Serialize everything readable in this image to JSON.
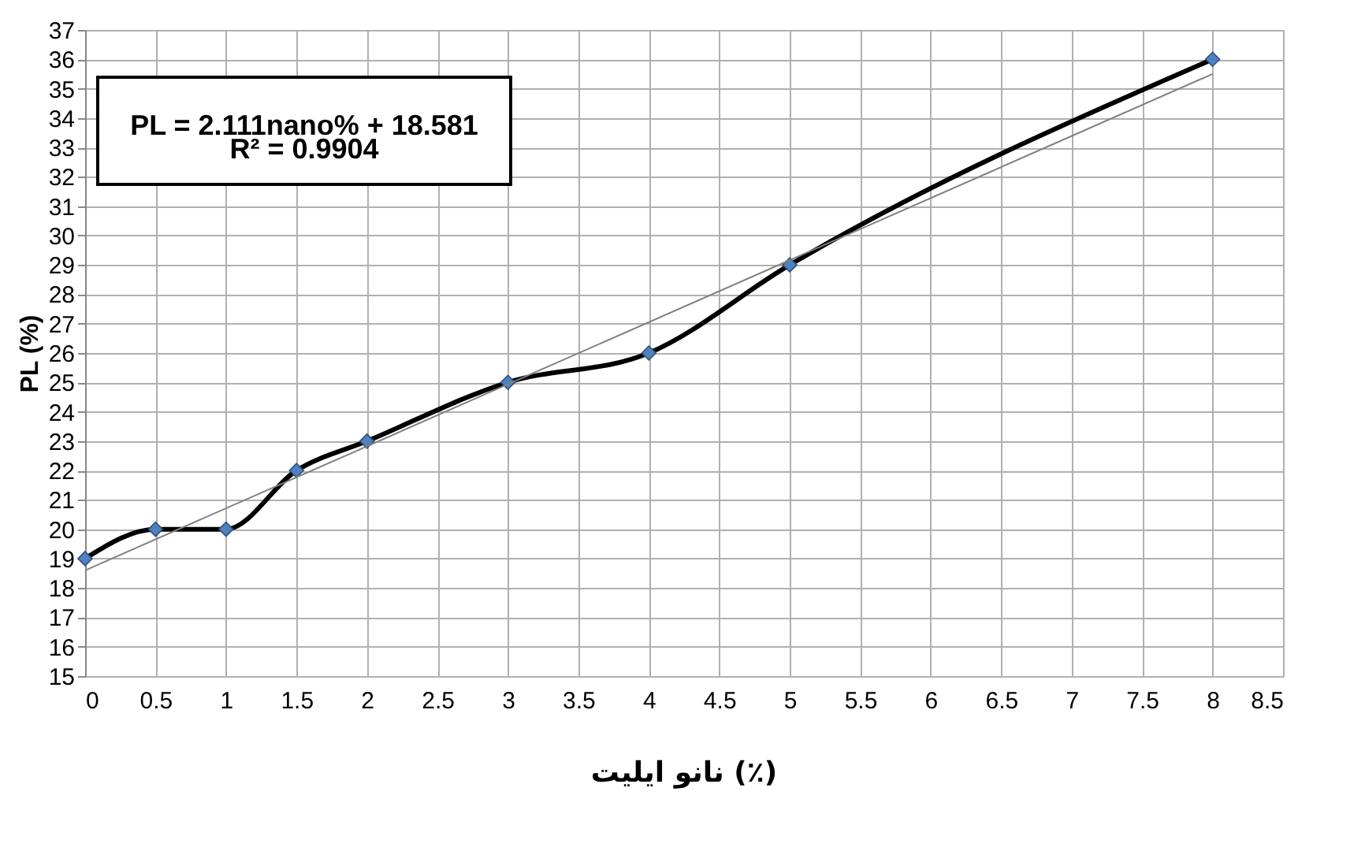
{
  "chart_data": {
    "type": "line",
    "xlabel": "نانو ایلیت (٪)",
    "ylabel": "PL (%)",
    "annotations": [
      "PL = 2.111nano% + 18.581",
      "R² = 0.9904"
    ],
    "series": [
      {
        "type": "line",
        "color": "#000000",
        "x": [
          0,
          0.5,
          1,
          1.5,
          2,
          3,
          4,
          5,
          8
        ],
        "values": [
          19,
          20,
          20,
          22,
          23,
          25,
          26,
          29,
          36
        ],
        "marker": "none"
      },
      {
        "type": "scatter",
        "color": "#4f81bd",
        "x": [
          0,
          0.5,
          1,
          1.5,
          2,
          3,
          4,
          5,
          8
        ],
        "values": [
          19,
          20,
          20,
          22,
          23,
          25,
          26,
          29,
          36
        ],
        "marker": "diamond"
      },
      {
        "type": "line",
        "color": "#808080",
        "x": [
          0,
          8
        ],
        "values": [
          18.6,
          35.5
        ],
        "marker": "none"
      }
    ],
    "xlim": [
      0,
      8.5
    ],
    "xticks": [
      0,
      0.5,
      1,
      1.5,
      2,
      2.5,
      3,
      3.5,
      4,
      4.5,
      5,
      5.5,
      6,
      6.5,
      7,
      7.5,
      8,
      8.5
    ],
    "ylim": [
      15,
      37
    ],
    "yticks": [
      15,
      16,
      17,
      18,
      19,
      20,
      21,
      22,
      23,
      24,
      25,
      26,
      27,
      28,
      29,
      30,
      31,
      32,
      33,
      34,
      35,
      36,
      37
    ],
    "grid": true
  }
}
